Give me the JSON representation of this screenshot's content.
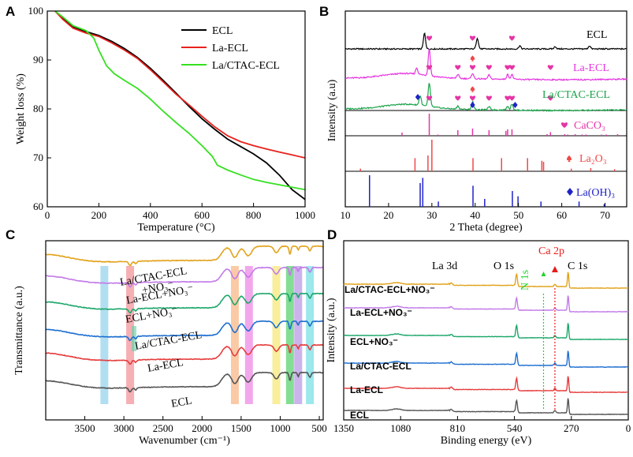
{
  "panel_labels": [
    "A",
    "B",
    "C",
    "D"
  ],
  "chart_data": [
    {
      "panel": "A",
      "type": "line",
      "xlabel": "Temperature (°C)",
      "ylabel": "Weight loss (%)",
      "xlim": [
        0,
        1000
      ],
      "ylim": [
        60,
        100
      ],
      "xticks": [
        0,
        200,
        400,
        600,
        800,
        1000
      ],
      "yticks": [
        60,
        70,
        80,
        90,
        100
      ],
      "legend_position": "top-right",
      "series": [
        {
          "name": "ECL",
          "color": "#000000",
          "x": [
            30,
            60,
            100,
            150,
            200,
            250,
            300,
            350,
            400,
            450,
            500,
            550,
            600,
            650,
            700,
            750,
            800,
            850,
            900,
            950,
            1000
          ],
          "y": [
            100,
            98.5,
            96.8,
            95.8,
            95.0,
            93.8,
            92.3,
            90.5,
            88.3,
            85.8,
            83.2,
            80.5,
            78.0,
            75.8,
            73.8,
            72.3,
            70.8,
            69.0,
            66.5,
            63.5,
            61.5
          ]
        },
        {
          "name": "La-ECL",
          "color": "#e8211c",
          "x": [
            30,
            60,
            100,
            150,
            200,
            250,
            300,
            350,
            400,
            450,
            500,
            550,
            600,
            650,
            700,
            750,
            800,
            850,
            900,
            950,
            1000
          ],
          "y": [
            100,
            98.3,
            96.5,
            95.5,
            94.8,
            93.5,
            92.0,
            90.3,
            88.0,
            85.5,
            83.0,
            80.8,
            78.5,
            76.3,
            74.5,
            73.3,
            72.5,
            71.8,
            71.2,
            70.6,
            70.0
          ]
        },
        {
          "name": "La/CTAC-ECL",
          "color": "#36e021",
          "x": [
            30,
            60,
            100,
            150,
            180,
            200,
            230,
            260,
            300,
            350,
            400,
            450,
            500,
            550,
            600,
            640,
            660,
            700,
            750,
            800,
            850,
            900,
            950,
            1000
          ],
          "y": [
            100,
            98.8,
            97.0,
            96.0,
            94.5,
            92.0,
            88.8,
            87.2,
            85.8,
            84.2,
            82.0,
            79.5,
            77.2,
            75.0,
            72.5,
            70.3,
            68.5,
            67.5,
            66.5,
            65.6,
            65.0,
            64.5,
            64.0,
            63.5
          ]
        }
      ]
    },
    {
      "panel": "B",
      "type": "line",
      "xlabel": "2 Theta (degree)",
      "ylabel": "Intensity (a.u)",
      "xlim": [
        10,
        75
      ],
      "xticks": [
        10,
        20,
        30,
        40,
        50,
        60,
        70
      ],
      "series": [
        {
          "name": "ECL",
          "color": "#000000",
          "peaks": [
            [
              28.3,
              20
            ],
            [
              40.5,
              14
            ],
            [
              50.3,
              4
            ],
            [
              58.5,
              3
            ],
            [
              66.4,
              4
            ]
          ],
          "markers": [
            29.4,
            39.4,
            48.5
          ]
        },
        {
          "name": "La-ECL",
          "color": "#e535e0",
          "peaks": [
            [
              29.4,
              34
            ],
            [
              26.5,
              8
            ],
            [
              36.0,
              5
            ],
            [
              39.4,
              7
            ],
            [
              43.2,
              5
            ],
            [
              47.5,
              6
            ],
            [
              48.5,
              6
            ]
          ],
          "markers": [
            29.4,
            36.0,
            39.4,
            43.2,
            47.5,
            48.5,
            57.4
          ]
        },
        {
          "name": "La/CTAC-ECL",
          "color": "#1aa34a",
          "peaks": [
            [
              29.4,
              30
            ],
            [
              27.3,
              12
            ],
            [
              39.4,
              10
            ],
            [
              48.5,
              8
            ],
            [
              36.0,
              4
            ],
            [
              43.2,
              4
            ],
            [
              47.5,
              5
            ]
          ],
          "markers": [
            29.4,
            36.0,
            39.4,
            43.2,
            47.5,
            48.5,
            57.4
          ]
        }
      ],
      "references": [
        {
          "name": "CaCO3",
          "color": "#e535a5",
          "sticks": [
            [
              23.1,
              8
            ],
            [
              29.4,
              55
            ],
            [
              31.4,
              3
            ],
            [
              36.0,
              14
            ],
            [
              39.4,
              18
            ],
            [
              43.2,
              14
            ],
            [
              47.1,
              12
            ],
            [
              47.5,
              16
            ],
            [
              48.5,
              16
            ],
            [
              56.6,
              4
            ],
            [
              57.4,
              9
            ],
            [
              60.7,
              4
            ],
            [
              61.4,
              3
            ],
            [
              63.1,
              4
            ],
            [
              64.7,
              3
            ],
            [
              65.6,
              3
            ],
            [
              69.2,
              3
            ],
            [
              70.3,
              3
            ],
            [
              72.9,
              4
            ]
          ]
        },
        {
          "name": "La2O3",
          "color": "#f04848",
          "sticks": [
            [
              13.5,
              5
            ],
            [
              26.1,
              25
            ],
            [
              29.1,
              30
            ],
            [
              30.0,
              60
            ],
            [
              39.5,
              25
            ],
            [
              46.1,
              25
            ],
            [
              52.1,
              25
            ],
            [
              55.4,
              20
            ],
            [
              55.8,
              18
            ],
            [
              62.2,
              5
            ],
            [
              66.7,
              6
            ],
            [
              72.2,
              4
            ]
          ]
        },
        {
          "name": "La(OH)3",
          "color": "#1f22c8",
          "sticks": [
            [
              15.6,
              60
            ],
            [
              27.3,
              45
            ],
            [
              27.9,
              55
            ],
            [
              31.5,
              10
            ],
            [
              39.5,
              40
            ],
            [
              42.2,
              15
            ],
            [
              48.6,
              30
            ],
            [
              49.9,
              20
            ],
            [
              55.2,
              10
            ],
            [
              64.0,
              10
            ],
            [
              69.8,
              5
            ]
          ]
        }
      ],
      "labels": [
        "ECL",
        "La-ECL",
        "La/CTAC-ECL",
        "CaCO₃",
        "La₂O₃",
        "La(OH)₃"
      ]
    },
    {
      "panel": "C",
      "type": "line",
      "xlabel": "Wavenumber (cm⁻¹)",
      "ylabel": "Transmittance (a.u.)",
      "xlim": [
        4000,
        450
      ],
      "xticks": [
        3500,
        3000,
        2500,
        2000,
        1500,
        1000,
        500
      ],
      "highlight_bands": [
        {
          "center": 3250,
          "color": "#7fc8ea"
        },
        {
          "center": 2920,
          "color": "#f07a80"
        },
        {
          "center": 2850,
          "color": "#5ed0a6"
        },
        {
          "center": 1580,
          "color": "#f6a76a"
        },
        {
          "center": 1400,
          "color": "#ea6ce0"
        },
        {
          "center": 1050,
          "color": "#f3e25a"
        },
        {
          "center": 875,
          "color": "#31c84d"
        },
        {
          "center": 770,
          "color": "#a981e0"
        },
        {
          "center": 620,
          "color": "#5ad8e0"
        }
      ],
      "series": [
        {
          "name": "ECL",
          "color": "#555555"
        },
        {
          "name": "La-ECL",
          "color": "#e63c3c"
        },
        {
          "name": "La/CTAC-ECL",
          "color": "#1e6fd0"
        },
        {
          "name": "ECL+NO₃⁻",
          "color": "#1ca76a"
        },
        {
          "name": "La-ECL+NO₃⁻",
          "color": "#c27ae8"
        },
        {
          "name": "La/CTAC-ECL+NO₃⁻",
          "color": "#e2a21a"
        }
      ],
      "series_labels": [
        "ECL",
        "La-ECL",
        "La/CTAC-ECL",
        "ECL+NO₃⁻",
        "La-ECL+NO₃⁻",
        "La/CTAC-ECL",
        "+NO₃⁻"
      ]
    },
    {
      "panel": "D",
      "type": "line",
      "xlabel": "Binding energy (eV)",
      "ylabel": "Intensity (a.u.)",
      "xlim": [
        1350,
        0
      ],
      "xticks": [
        1350,
        1080,
        810,
        540,
        270,
        0
      ],
      "annotations": [
        {
          "text": "La 3d",
          "x": 840
        },
        {
          "text": "O 1s",
          "x": 545
        },
        {
          "text": "N 1s",
          "x": 402,
          "color": "#1fd62a"
        },
        {
          "text": "Ca 2p",
          "x": 348,
          "color": "#e81a1a"
        },
        {
          "text": "C 1s",
          "x": 285
        }
      ],
      "series": [
        {
          "name": "ECL",
          "color": "#555555"
        },
        {
          "name": "La-ECL",
          "color": "#e63c3c"
        },
        {
          "name": "La/CTAC-ECL",
          "color": "#1e6fd0"
        },
        {
          "name": "ECL+NO₃⁻",
          "color": "#1ca76a"
        },
        {
          "name": "La-ECL+NO₃⁻",
          "color": "#c27ae8"
        },
        {
          "name": "La/CTAC-ECL+NO₃⁻",
          "color": "#e2a21a"
        }
      ]
    }
  ]
}
